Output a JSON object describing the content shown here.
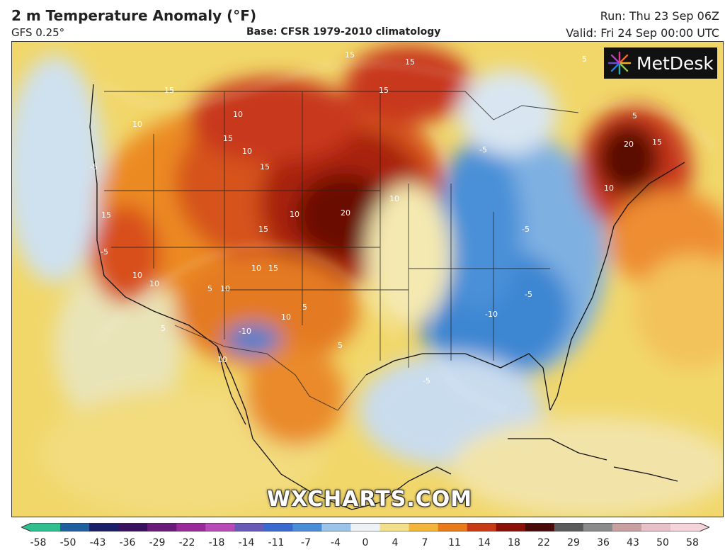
{
  "header": {
    "title": "2 m Temperature Anomaly (°F)",
    "model": "GFS 0.25°",
    "base": "Base: CFSR 1979-2010 climatology",
    "run": "Run: Thu 23 Sep 06Z",
    "valid": "Valid: Fri 24 Sep 00:00 UTC"
  },
  "logo": {
    "text": "MetDesk",
    "icon": "starburst-logo-icon"
  },
  "watermark": "WXCHARTS.COM",
  "legend": {
    "ticks": [
      "-58",
      "-50",
      "-43",
      "-36",
      "-29",
      "-22",
      "-18",
      "-14",
      "-11",
      "-7",
      "-4",
      "0",
      "4",
      "7",
      "11",
      "14",
      "18",
      "22",
      "29",
      "36",
      "43",
      "50",
      "58"
    ],
    "colors": [
      "#2fbf8f",
      "#1f5f9f",
      "#1a1f6a",
      "#3a1060",
      "#6a1a7a",
      "#9a2a9a",
      "#b84ab8",
      "#6a5ab8",
      "#3a6acf",
      "#4a8ed8",
      "#9cc4ea",
      "#eef3f8",
      "#f2e08a",
      "#f4b63a",
      "#ea7a1a",
      "#c83a14",
      "#8a1008",
      "#4a0a08",
      "#5a5a5a",
      "#8a8a8a",
      "#c8a0a0",
      "#e8c0c8",
      "#f4d4d8"
    ]
  },
  "map_labels": [
    "15",
    "15",
    "15",
    "10",
    "15",
    "10",
    "15",
    "10",
    "10",
    "20",
    "15",
    "10",
    "5",
    "10",
    "15",
    "15",
    "10",
    "10",
    "10",
    "5",
    "10",
    "15",
    "5",
    "10",
    "-10",
    "5",
    "-5",
    "-5",
    "-10",
    "-5",
    "-5",
    "-5",
    "-5",
    "20",
    "15",
    "10",
    "5",
    "5"
  ]
}
